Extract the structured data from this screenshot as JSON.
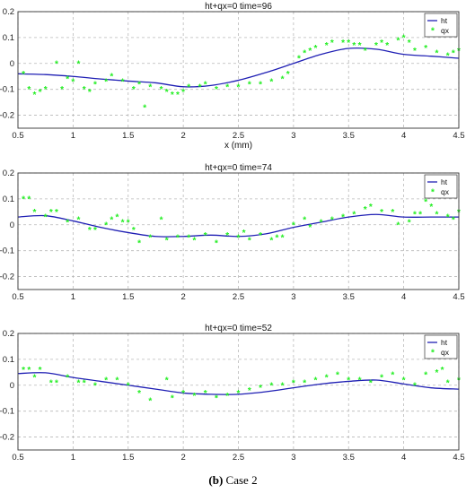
{
  "caption": {
    "label": "(b)",
    "text": "Case 2"
  },
  "chart_data": [
    {
      "type": "line",
      "title": "ht+qx=0  time=96",
      "xlabel": "x (mm)",
      "ylabel": "",
      "xlim": [
        0.5,
        4.5
      ],
      "ylim": [
        -0.25,
        0.2
      ],
      "xticks": [
        0.5,
        1,
        1.5,
        2,
        2.5,
        3,
        3.5,
        4,
        4.5
      ],
      "yticks": [
        -0.2,
        -0.1,
        0,
        0.1,
        0.2
      ],
      "grid": true,
      "legend": "top-right",
      "series": [
        {
          "name": "ht",
          "style": "line",
          "color": "#1f1fb4",
          "x": [
            0.5,
            0.75,
            1.0,
            1.25,
            1.5,
            1.75,
            2.0,
            2.25,
            2.5,
            2.75,
            3.0,
            3.25,
            3.5,
            3.75,
            4.0,
            4.25,
            4.5
          ],
          "y": [
            -0.04,
            -0.043,
            -0.05,
            -0.06,
            -0.068,
            -0.075,
            -0.09,
            -0.085,
            -0.065,
            -0.035,
            0.0,
            0.035,
            0.058,
            0.055,
            0.035,
            0.028,
            0.02
          ]
        },
        {
          "name": "qx",
          "style": "markers",
          "color": "#22ee22",
          "x": [
            0.55,
            0.6,
            0.65,
            0.7,
            0.75,
            0.85,
            0.9,
            0.95,
            1.0,
            1.05,
            1.1,
            1.15,
            1.2,
            1.3,
            1.35,
            1.45,
            1.55,
            1.6,
            1.65,
            1.7,
            1.8,
            1.85,
            1.9,
            1.95,
            2.0,
            2.05,
            2.15,
            2.2,
            2.3,
            2.4,
            2.5,
            2.6,
            2.7,
            2.8,
            2.9,
            2.95,
            3.05,
            3.1,
            3.15,
            3.2,
            3.3,
            3.35,
            3.45,
            3.5,
            3.55,
            3.6,
            3.65,
            3.75,
            3.8,
            3.85,
            3.95,
            4.0,
            4.05,
            4.1,
            4.2,
            4.3,
            4.4,
            4.45,
            4.5
          ],
          "y": [
            -0.04,
            -0.1,
            -0.12,
            -0.11,
            -0.1,
            0.0,
            -0.1,
            -0.06,
            -0.07,
            0.0,
            -0.1,
            -0.11,
            -0.08,
            -0.07,
            -0.05,
            -0.07,
            -0.1,
            -0.08,
            -0.17,
            -0.09,
            -0.1,
            -0.11,
            -0.12,
            -0.12,
            -0.11,
            -0.09,
            -0.09,
            -0.08,
            -0.1,
            -0.09,
            -0.09,
            -0.08,
            -0.08,
            -0.07,
            -0.06,
            -0.04,
            0.02,
            0.04,
            0.05,
            0.06,
            0.07,
            0.08,
            0.08,
            0.08,
            0.07,
            0.07,
            0.05,
            0.07,
            0.08,
            0.07,
            0.09,
            0.1,
            0.08,
            0.05,
            0.06,
            0.04,
            0.03,
            0.04,
            0.05
          ]
        }
      ]
    },
    {
      "type": "line",
      "title": "ht+qx=0  time=74",
      "xlabel": "",
      "ylabel": "",
      "xlim": [
        0.5,
        4.5
      ],
      "ylim": [
        -0.25,
        0.2
      ],
      "xticks": [
        0.5,
        1,
        1.5,
        2,
        2.5,
        3,
        3.5,
        4,
        4.5
      ],
      "yticks": [
        -0.2,
        -0.1,
        0,
        0.1,
        0.2
      ],
      "grid": true,
      "legend": "top-right",
      "series": [
        {
          "name": "ht",
          "style": "line",
          "color": "#1f1fb4",
          "x": [
            0.5,
            0.75,
            1.0,
            1.25,
            1.5,
            1.75,
            2.0,
            2.25,
            2.5,
            2.75,
            3.0,
            3.25,
            3.5,
            3.75,
            4.0,
            4.25,
            4.5
          ],
          "y": [
            0.03,
            0.035,
            0.015,
            -0.01,
            -0.03,
            -0.045,
            -0.045,
            -0.04,
            -0.045,
            -0.035,
            -0.01,
            0.01,
            0.03,
            0.04,
            0.03,
            0.03,
            0.03
          ]
        },
        {
          "name": "qx",
          "style": "markers",
          "color": "#22ee22",
          "x": [
            0.55,
            0.6,
            0.65,
            0.75,
            0.8,
            0.85,
            0.95,
            1.05,
            1.15,
            1.2,
            1.3,
            1.35,
            1.4,
            1.45,
            1.5,
            1.55,
            1.6,
            1.7,
            1.8,
            1.85,
            1.95,
            2.05,
            2.1,
            2.2,
            2.3,
            2.4,
            2.5,
            2.55,
            2.6,
            2.7,
            2.8,
            2.85,
            2.9,
            3.0,
            3.1,
            3.15,
            3.25,
            3.35,
            3.45,
            3.55,
            3.65,
            3.7,
            3.8,
            3.9,
            3.95,
            4.05,
            4.1,
            4.15,
            4.2,
            4.25,
            4.3,
            4.4,
            4.45,
            4.5
          ],
          "y": [
            0.1,
            0.1,
            0.05,
            0.03,
            0.05,
            0.05,
            0.01,
            0.02,
            -0.02,
            -0.02,
            0.0,
            0.02,
            0.03,
            0.01,
            0.01,
            -0.02,
            -0.07,
            -0.05,
            0.02,
            -0.06,
            -0.05,
            -0.05,
            -0.06,
            -0.04,
            -0.07,
            -0.04,
            -0.05,
            -0.03,
            -0.06,
            -0.04,
            -0.06,
            -0.05,
            -0.05,
            0.0,
            0.02,
            -0.01,
            0.01,
            0.02,
            0.03,
            0.04,
            0.06,
            0.07,
            0.05,
            0.05,
            0.0,
            0.01,
            0.04,
            0.04,
            0.09,
            0.07,
            0.04,
            0.03,
            0.02,
            0.05
          ]
        }
      ]
    },
    {
      "type": "line",
      "title": "ht+qx=0  time=52",
      "xlabel": "",
      "ylabel": "",
      "xlim": [
        0.5,
        4.5
      ],
      "ylim": [
        -0.25,
        0.2
      ],
      "xticks": [
        0.5,
        1,
        1.5,
        2,
        2.5,
        3,
        3.5,
        4,
        4.5
      ],
      "yticks": [
        -0.2,
        -0.1,
        0,
        0.1,
        0.2
      ],
      "grid": true,
      "legend": "top-right",
      "series": [
        {
          "name": "ht",
          "style": "line",
          "color": "#1f1fb4",
          "x": [
            0.5,
            0.75,
            1.0,
            1.25,
            1.5,
            1.75,
            2.0,
            2.25,
            2.5,
            2.75,
            3.0,
            3.25,
            3.5,
            3.75,
            4.0,
            4.25,
            4.5
          ],
          "y": [
            0.045,
            0.048,
            0.03,
            0.015,
            0.0,
            -0.015,
            -0.03,
            -0.035,
            -0.035,
            -0.025,
            -0.01,
            0.005,
            0.015,
            0.02,
            0.005,
            -0.01,
            -0.015
          ]
        },
        {
          "name": "qx",
          "style": "markers",
          "color": "#22ee22",
          "x": [
            0.55,
            0.6,
            0.65,
            0.7,
            0.8,
            0.85,
            0.95,
            1.05,
            1.1,
            1.2,
            1.3,
            1.4,
            1.5,
            1.6,
            1.7,
            1.85,
            1.9,
            2.0,
            2.1,
            2.2,
            2.3,
            2.4,
            2.5,
            2.6,
            2.7,
            2.8,
            2.9,
            3.0,
            3.1,
            3.2,
            3.3,
            3.4,
            3.5,
            3.6,
            3.7,
            3.8,
            3.9,
            4.0,
            4.1,
            4.2,
            4.3,
            4.35,
            4.4,
            4.5
          ],
          "y": [
            0.06,
            0.06,
            0.03,
            0.06,
            0.01,
            0.01,
            0.03,
            0.01,
            0.01,
            0.0,
            0.02,
            0.02,
            0.0,
            -0.03,
            -0.06,
            0.02,
            -0.05,
            -0.03,
            -0.04,
            -0.03,
            -0.05,
            -0.04,
            -0.03,
            -0.02,
            -0.01,
            0.0,
            0.0,
            0.01,
            0.01,
            0.02,
            0.03,
            0.04,
            0.02,
            0.02,
            0.01,
            0.03,
            0.04,
            0.02,
            0.0,
            0.04,
            0.05,
            0.06,
            0.01,
            0.02
          ]
        }
      ]
    }
  ]
}
